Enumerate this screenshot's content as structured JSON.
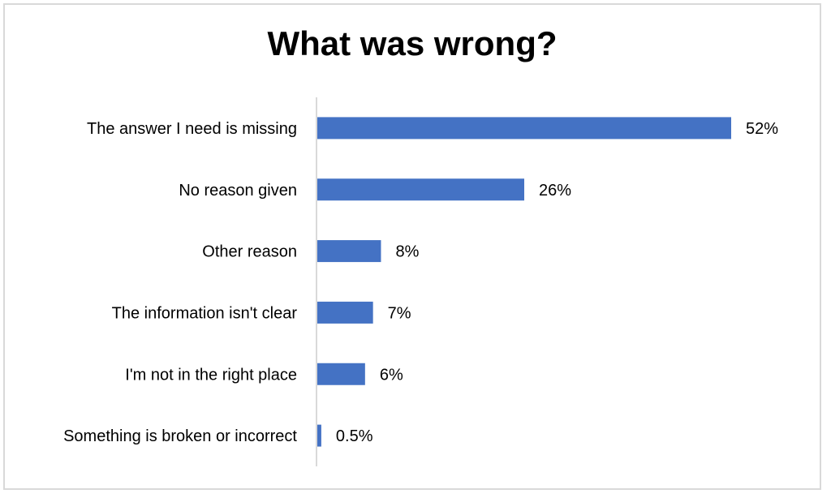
{
  "chart_data": {
    "type": "bar",
    "orientation": "horizontal",
    "title": "What was wrong?",
    "categories": [
      "The answer I need is missing",
      "No reason given",
      "Other reason",
      "The information isn't clear",
      "I'm not in the right place",
      "Something is broken or incorrect"
    ],
    "values": [
      52,
      26,
      8,
      7,
      6,
      0.5
    ],
    "value_labels": [
      "52%",
      "26%",
      "8%",
      "7%",
      "6%",
      "0.5%"
    ],
    "unit": "%",
    "xlim": [
      0,
      52
    ],
    "bar_color": "#4472C4",
    "axis_color": "#d9d9d9",
    "grid": false,
    "legend": false
  }
}
